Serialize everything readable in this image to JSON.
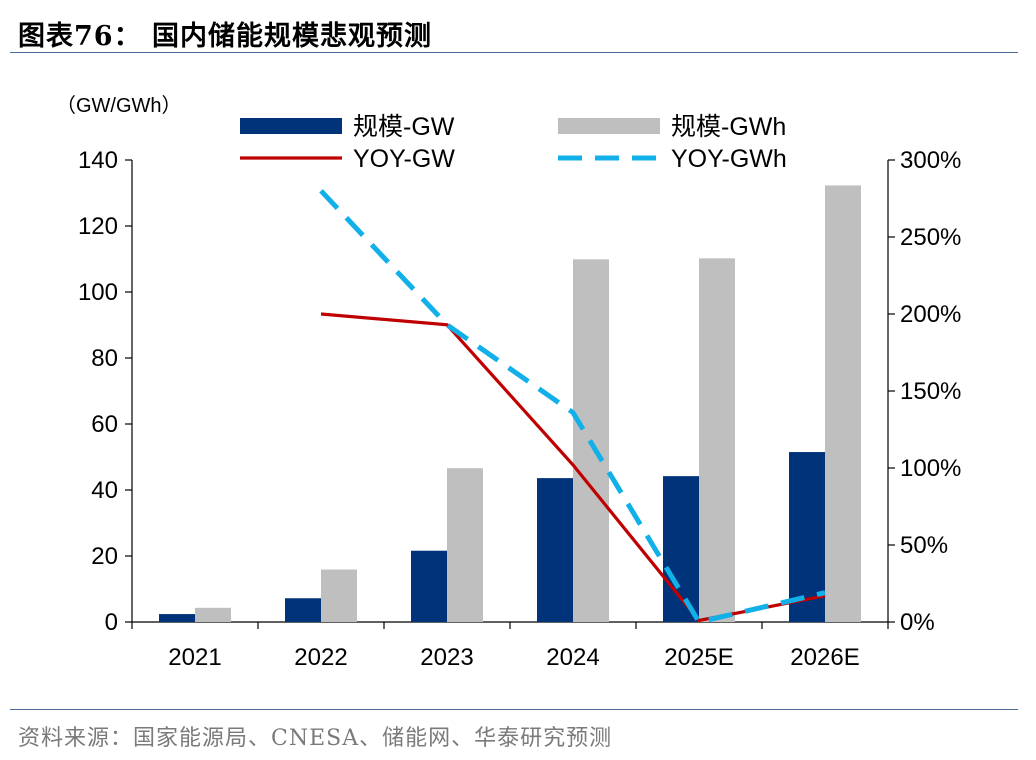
{
  "figure": {
    "title": "图表76：  国内储能规模悲观预测",
    "source": "资料来源：国家能源局、CNESA、储能网、华泰研究预测",
    "colors": {
      "gw": "#00337a",
      "gwh": "#bfbfbf",
      "yoy_gw": "#c00000",
      "yoy_gwh": "#12b0e8"
    }
  },
  "chart_data": {
    "type": "bar",
    "unit_label": "（GW/GWh）",
    "categories": [
      "2021",
      "2022",
      "2023",
      "2024",
      "2025E",
      "2026E"
    ],
    "series": [
      {
        "name": "规模-GW",
        "type": "bar",
        "axis": "left",
        "values": [
          2.4,
          7.2,
          21.6,
          43.6,
          44.2,
          51.5
        ]
      },
      {
        "name": "规模-GWh",
        "type": "bar",
        "axis": "left",
        "values": [
          4.3,
          15.9,
          46.6,
          109.9,
          110.2,
          132.3
        ]
      },
      {
        "name": "YOY-GW",
        "type": "line",
        "axis": "right",
        "values": [
          null,
          200,
          193,
          102,
          1,
          17
        ]
      },
      {
        "name": "YOY-GWh",
        "type": "line",
        "axis": "right",
        "values": [
          null,
          280,
          193,
          136,
          0,
          19
        ]
      }
    ],
    "y_left": {
      "min": 0,
      "max": 140,
      "ticks": [
        0,
        20,
        40,
        60,
        80,
        100,
        120,
        140
      ]
    },
    "y_right": {
      "min": 0,
      "max": 300,
      "ticks": [
        "0%",
        "50%",
        "100%",
        "150%",
        "200%",
        "250%",
        "300%"
      ]
    },
    "grid": false,
    "legend": "top"
  }
}
